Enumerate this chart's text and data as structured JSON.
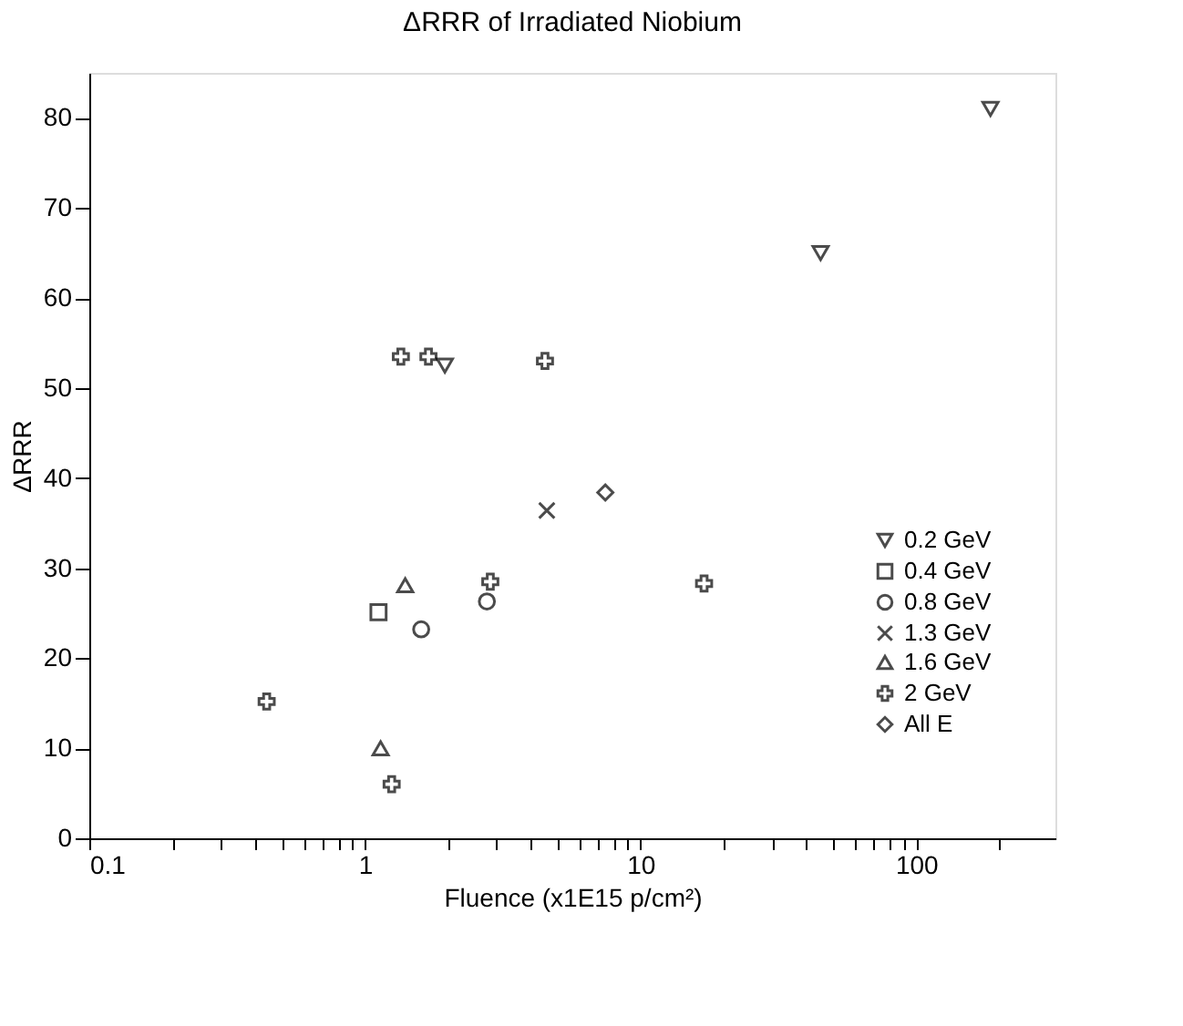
{
  "chart_data": {
    "type": "scatter",
    "title": "ΔRRR of Irradiated Niobium",
    "xlabel": "Fluence (x1E15 p/cm²)",
    "ylabel": "ΔRRR",
    "log": "x",
    "series": [
      {
        "name": "0.2 GeV",
        "color": "#000000",
        "marker": "triangle-down",
        "x": [
          1.95,
          45,
          186
        ],
        "values": [
          52.5,
          65,
          81
        ]
      },
      {
        "name": "0.4 GeV",
        "color": "#000000",
        "marker": "square",
        "x": [
          1.12
        ],
        "values": [
          25.1
        ]
      },
      {
        "name": "0.8 GeV",
        "color": "#000000",
        "marker": "circle",
        "x": [
          1.6,
          2.77
        ],
        "values": [
          23.2,
          26.3
        ]
      },
      {
        "name": "1.3 GeV",
        "color": "#000000",
        "marker": "x",
        "x": [
          4.57
        ],
        "values": [
          36.4
        ]
      },
      {
        "name": "1.6 GeV",
        "color": "#000000",
        "marker": "triangle",
        "x": [
          1.14,
          1.4
        ],
        "values": [
          10,
          28.1
        ]
      },
      {
        "name": "2 GeV",
        "color": "#000000",
        "marker": "cross",
        "x": [
          0.44,
          1.25,
          1.35,
          1.7,
          2.85,
          4.5,
          17
        ],
        "values": [
          15.2,
          6,
          53.5,
          53.5,
          28.5,
          53,
          28.3
        ]
      },
      {
        "name": "All E",
        "color": "#000000",
        "marker": "diamond",
        "x": [
          7.45
        ],
        "values": [
          38.4
        ]
      }
    ],
    "xlim": [
      0.1,
      320
    ],
    "ylim": [
      0,
      85
    ],
    "xticks": [
      0.1,
      {
        "value": 0.2,
        "label": null
      },
      {
        "value": 0.3,
        "label": null
      },
      {
        "value": 0.4,
        "label": null
      },
      {
        "value": 0.5,
        "label": null
      },
      {
        "value": 0.6,
        "label": null
      },
      {
        "value": 0.7,
        "label": null
      },
      {
        "value": 0.8,
        "label": null
      },
      {
        "value": 0.9,
        "label": null
      },
      1,
      {
        "value": 2,
        "label": null
      },
      {
        "value": 3,
        "label": null
      },
      {
        "value": 4,
        "label": null
      },
      {
        "value": 5,
        "label": null
      },
      {
        "value": 6,
        "label": null
      },
      {
        "value": 7,
        "label": null
      },
      {
        "value": 8,
        "label": null
      },
      {
        "value": 9,
        "label": null
      },
      10,
      {
        "value": 20,
        "label": null
      },
      {
        "value": 30,
        "label": null
      },
      {
        "value": 40,
        "label": null
      },
      {
        "value": 50,
        "label": null
      },
      {
        "value": 60,
        "label": null
      },
      {
        "value": 70,
        "label": null
      },
      {
        "value": 80,
        "label": null
      },
      {
        "value": 90,
        "label": null
      },
      100,
      {
        "value": 200,
        "label": null
      }
    ],
    "yticks": [
      0,
      10,
      20,
      30,
      40,
      50,
      60,
      70,
      80
    ],
    "grid": false,
    "legend": "right"
  }
}
